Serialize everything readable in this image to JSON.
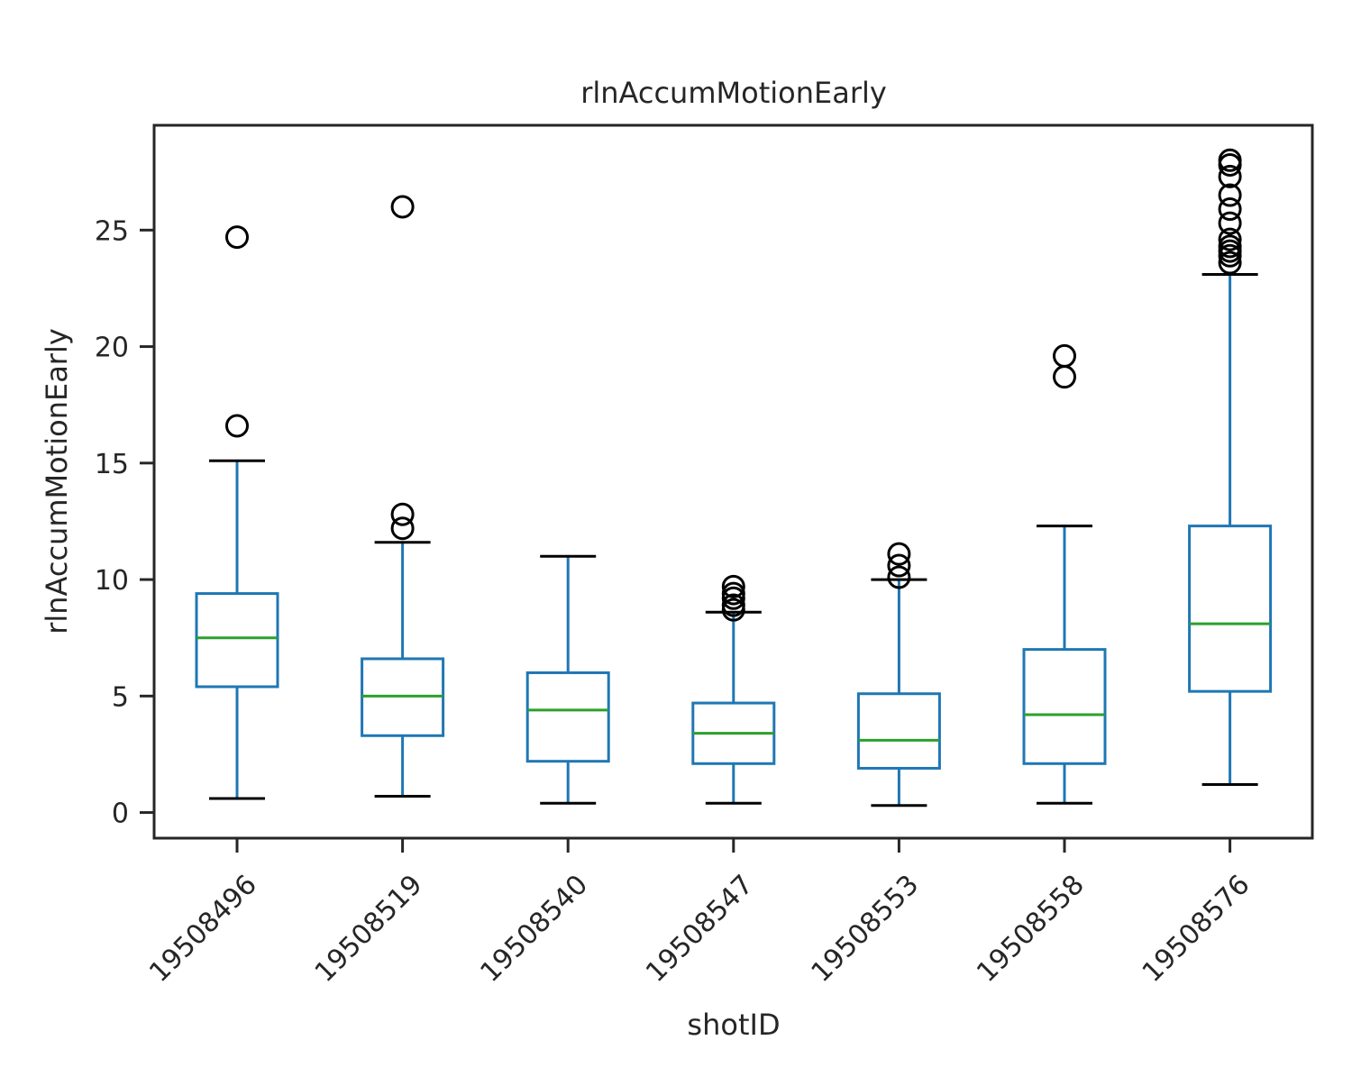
{
  "chart_data": {
    "type": "boxplot",
    "title": "rlnAccumMotionEarly",
    "xlabel": "shotID",
    "ylabel": "rlnAccumMotionEarly",
    "ylim": [
      -1.1,
      29.5
    ],
    "yticks": [
      0,
      5,
      10,
      15,
      20,
      25
    ],
    "grid": false,
    "categories": [
      "19508496",
      "19508519",
      "19508540",
      "19508547",
      "19508553",
      "19508558",
      "19508576"
    ],
    "boxes": [
      {
        "category": "19508496",
        "whisker_low": 0.6,
        "q1": 5.4,
        "median": 7.5,
        "q3": 9.4,
        "whisker_high": 15.1,
        "outliers": [
          16.6,
          24.7
        ]
      },
      {
        "category": "19508519",
        "whisker_low": 0.7,
        "q1": 3.3,
        "median": 5.0,
        "q3": 6.6,
        "whisker_high": 11.6,
        "outliers": [
          12.2,
          12.8,
          26.0
        ]
      },
      {
        "category": "19508540",
        "whisker_low": 0.4,
        "q1": 2.2,
        "median": 4.4,
        "q3": 6.0,
        "whisker_high": 11.0,
        "outliers": []
      },
      {
        "category": "19508547",
        "whisker_low": 0.4,
        "q1": 2.1,
        "median": 3.4,
        "q3": 4.7,
        "whisker_high": 8.6,
        "outliers": [
          8.7,
          8.9,
          9.2,
          9.4,
          9.7
        ]
      },
      {
        "category": "19508553",
        "whisker_low": 0.3,
        "q1": 1.9,
        "median": 3.1,
        "q3": 5.1,
        "whisker_high": 10.0,
        "outliers": [
          10.1,
          10.6,
          11.1
        ]
      },
      {
        "category": "19508558",
        "whisker_low": 0.4,
        "q1": 2.1,
        "median": 4.2,
        "q3": 7.0,
        "whisker_high": 12.3,
        "outliers": [
          18.7,
          19.6
        ]
      },
      {
        "category": "19508576",
        "whisker_low": 1.2,
        "q1": 5.2,
        "median": 8.1,
        "q3": 12.3,
        "whisker_high": 23.1,
        "outliers": [
          23.6,
          23.9,
          24.1,
          24.3,
          24.6,
          25.3,
          25.9,
          26.5,
          27.3,
          27.8,
          28.0
        ]
      }
    ],
    "colors": {
      "box": "#1f77b4",
      "median": "#2ca02c",
      "cap": "#000000",
      "outlier": "#000000",
      "axes": "#262626"
    }
  }
}
